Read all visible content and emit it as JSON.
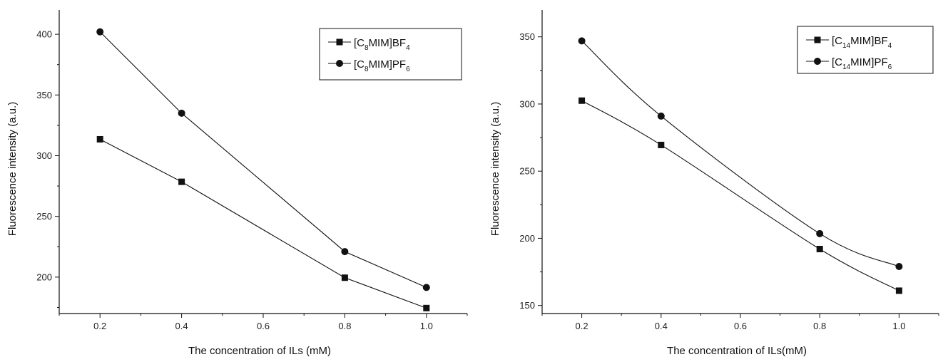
{
  "chart_data": [
    {
      "type": "line",
      "xlabel": "The concentration of ILs (mM)",
      "ylabel": "Fluorescence intensity (a.u.)",
      "xlim": [
        0.1,
        1.1
      ],
      "ylim": [
        170,
        420
      ],
      "x_ticks": [
        "0.2",
        "0.4",
        "0.6",
        "0.8",
        "1.0"
      ],
      "x_tick_values": [
        0.2,
        0.4,
        0.6,
        0.8,
        1.0
      ],
      "y_ticks": [
        "200",
        "250",
        "300",
        "350",
        "400"
      ],
      "y_tick_values": [
        200,
        250,
        300,
        350,
        400
      ],
      "grid": false,
      "legend_position": "top-right",
      "series": [
        {
          "name": "[C8MIM]BF4",
          "name_parts": [
            "[C",
            "8",
            "MIM]BF",
            "4"
          ],
          "marker": "square",
          "curve": "straight",
          "x": [
            0.2,
            0.4,
            0.8,
            1.0
          ],
          "values": [
            313.5,
            278.5,
            199.5,
            174.5
          ]
        },
        {
          "name": "[C8MIM]PF6",
          "name_parts": [
            "[C",
            "8",
            "MIM]PF",
            "6"
          ],
          "marker": "circle",
          "curve": "straight",
          "x": [
            0.2,
            0.4,
            0.8,
            1.0
          ],
          "values": [
            402,
            335,
            221,
            191.5
          ]
        }
      ]
    },
    {
      "type": "line",
      "xlabel": "The concentration of ILs(mM)",
      "ylabel": "Fluorescence intensity (a.u.)",
      "xlim": [
        0.1,
        1.1
      ],
      "ylim": [
        144,
        370
      ],
      "x_ticks": [
        "0.2",
        "0.4",
        "0.6",
        "0.8",
        "1.0"
      ],
      "x_tick_values": [
        0.2,
        0.4,
        0.6,
        0.8,
        1.0
      ],
      "y_ticks": [
        "150",
        "200",
        "250",
        "300",
        "350"
      ],
      "y_tick_values": [
        150,
        200,
        250,
        300,
        350
      ],
      "grid": false,
      "legend_position": "top-right",
      "series": [
        {
          "name": "[C14MIM]BF4",
          "name_parts": [
            "[C",
            "14",
            "MIM]BF",
            "4"
          ],
          "marker": "square",
          "curve": "smooth",
          "x": [
            0.2,
            0.4,
            0.8,
            1.0
          ],
          "values": [
            302.5,
            269.5,
            192,
            161
          ]
        },
        {
          "name": "[C14MIM]PF6",
          "name_parts": [
            "[C",
            "14",
            "MIM]PF",
            "6"
          ],
          "marker": "circle",
          "curve": "smooth",
          "x": [
            0.2,
            0.4,
            0.8,
            1.0
          ],
          "values": [
            347,
            291,
            203.5,
            179
          ]
        }
      ]
    }
  ]
}
